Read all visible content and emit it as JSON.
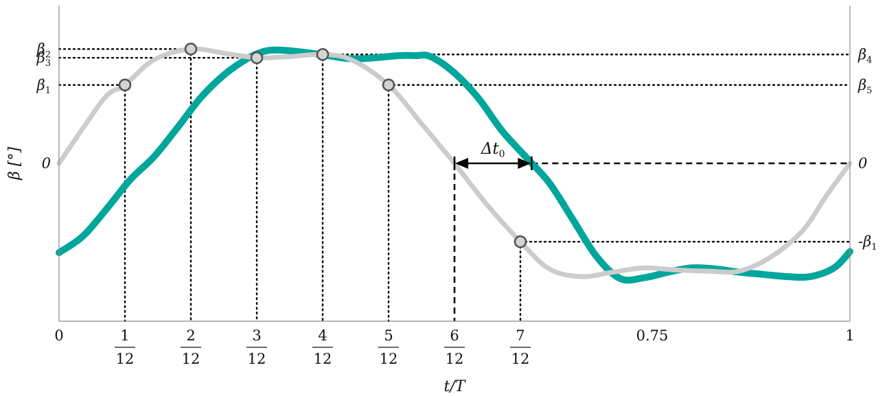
{
  "chart_data": {
    "type": "line",
    "xlabel": "t/T",
    "ylabel": "β [°]",
    "xlim": [
      0,
      1
    ],
    "ylim": [
      -1.45,
      1.45
    ],
    "grid": false,
    "x_ticks": [
      {
        "x": 0,
        "label": "0"
      },
      {
        "x": 0.08333,
        "num": "1",
        "den": "12"
      },
      {
        "x": 0.16667,
        "num": "2",
        "den": "12"
      },
      {
        "x": 0.25,
        "num": "3",
        "den": "12"
      },
      {
        "x": 0.33333,
        "num": "4",
        "den": "12"
      },
      {
        "x": 0.41667,
        "num": "5",
        "den": "12"
      },
      {
        "x": 0.5,
        "num": "6",
        "den": "12"
      },
      {
        "x": 0.58333,
        "num": "7",
        "den": "12"
      },
      {
        "x": 0.75,
        "label": "0.75"
      },
      {
        "x": 1,
        "label": "1"
      }
    ],
    "y_labels_left": [
      {
        "y": 1.05,
        "label": "β2"
      },
      {
        "y": 0.97,
        "label": "β3"
      },
      {
        "y": 0.72,
        "label": "β1"
      },
      {
        "y": 0,
        "label": "0"
      }
    ],
    "y_labels_right": [
      {
        "y": 1.0,
        "label": "β4"
      },
      {
        "y": 0.72,
        "label": "β5"
      },
      {
        "y": 0,
        "label": "0"
      },
      {
        "y": -0.72,
        "label": "-β1"
      }
    ],
    "series": [
      {
        "color": "#00a69c",
        "x": [
          0,
          0.03,
          0.06,
          0.09,
          0.12,
          0.15,
          0.18,
          0.21,
          0.24,
          0.26,
          0.28,
          0.31,
          0.34,
          0.37,
          0.4,
          0.43,
          0.45,
          0.47,
          0.5,
          0.53,
          0.56,
          0.59,
          0.62,
          0.65,
          0.68,
          0.71,
          0.74,
          0.77,
          0.8,
          0.83,
          0.86,
          0.89,
          0.92,
          0.95,
          0.98,
          1
        ],
        "y": [
          -0.82,
          -0.67,
          -0.42,
          -0.15,
          0.06,
          0.33,
          0.61,
          0.82,
          0.97,
          1.03,
          1.04,
          1.02,
          0.99,
          0.96,
          0.97,
          0.99,
          0.99,
          0.98,
          0.83,
          0.6,
          0.3,
          0.06,
          -0.18,
          -0.52,
          -0.86,
          -1.06,
          -1.05,
          -1.0,
          -0.96,
          -0.97,
          -1.0,
          -1.02,
          -1.04,
          -1.04,
          -0.96,
          -0.81
        ]
      },
      {
        "color": "#cccccc",
        "x": [
          0,
          0.03,
          0.06,
          0.08333,
          0.12,
          0.16667,
          0.21,
          0.25,
          0.29,
          0.33333,
          0.37,
          0.41667,
          0.46,
          0.5,
          0.54,
          0.58333,
          0.62,
          0.66,
          0.7,
          0.74,
          0.78,
          0.82,
          0.86,
          0.9,
          0.94,
          0.97,
          1
        ],
        "y": [
          0,
          0.32,
          0.62,
          0.72,
          0.95,
          1.05,
          1.01,
          0.97,
          0.98,
          1.0,
          0.95,
          0.72,
          0.35,
          0.0,
          -0.37,
          -0.72,
          -0.97,
          -1.04,
          -1.0,
          -0.96,
          -0.98,
          -0.99,
          -0.99,
          -0.86,
          -0.62,
          -0.3,
          0
        ]
      }
    ],
    "markers": [
      {
        "x": 0.08333,
        "y": 0.72
      },
      {
        "x": 0.16667,
        "y": 1.05
      },
      {
        "x": 0.25,
        "y": 0.97
      },
      {
        "x": 0.33333,
        "y": 1.0
      },
      {
        "x": 0.41667,
        "y": 0.72
      },
      {
        "x": 0.58333,
        "y": -0.72
      }
    ],
    "annotation": {
      "label": "Δt0",
      "x_start": 0.5,
      "x_end": 0.5975,
      "y": 0
    }
  }
}
